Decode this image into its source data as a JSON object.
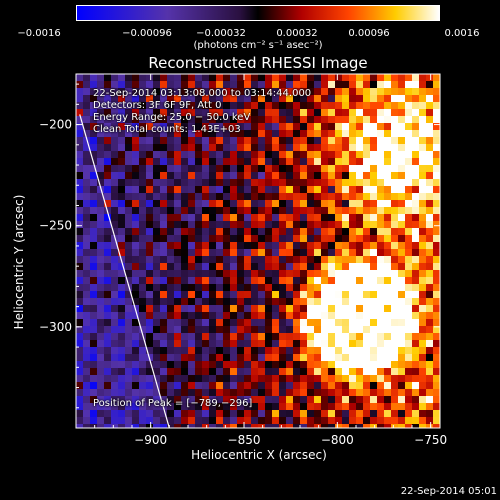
{
  "colorbar": {
    "ticks": [
      "−0.0016",
      "−0.00096",
      "−0.00032",
      "0.00032",
      "0.00096",
      "0.0016"
    ],
    "tick_values": [
      -0.0016,
      -0.00096,
      -0.00032,
      0.00032,
      0.00096,
      0.0016
    ],
    "units": "(photons cm⁻² s⁻¹ asec⁻²)",
    "range": [
      -0.0016,
      0.0016
    ],
    "colormap": "blue-purple-black-red-orange-yellow-white"
  },
  "chart_data": {
    "type": "heatmap",
    "title": "Reconstructed RHESSI Image",
    "xlabel": "Heliocentric X (arcsec)",
    "ylabel": "Heliocentric Y (arcsec)",
    "xlim": [
      -940,
      -745
    ],
    "ylim": [
      -350,
      -175
    ],
    "xticks": [
      -900,
      -850,
      -800,
      -750
    ],
    "yticks": [
      -200,
      -250,
      -300
    ],
    "xtick_labels": [
      "−900",
      "−850",
      "−800",
      "−750"
    ],
    "ytick_labels": [
      "−200",
      "−250",
      "−300"
    ],
    "limb_line": {
      "x": [
        -938,
        -890
      ],
      "y": [
        -195,
        -350
      ]
    },
    "peak": {
      "x": -789,
      "y": -296
    }
  },
  "annotations": [
    "22-Sep-2014 03:13:08.000 to 03:14:44.000",
    "Detectors: 3F 6F 9F, Att 0",
    "Energy Range: 25.0 − 50.0 keV",
    "Clean     Total counts: 1.43E+03"
  ],
  "peak_label": "Position of Peak = [−789,−296]",
  "timestamp": "22-Sep-2014 05:01",
  "colors": {
    "background": "#000000",
    "axis": "#ffffff"
  }
}
